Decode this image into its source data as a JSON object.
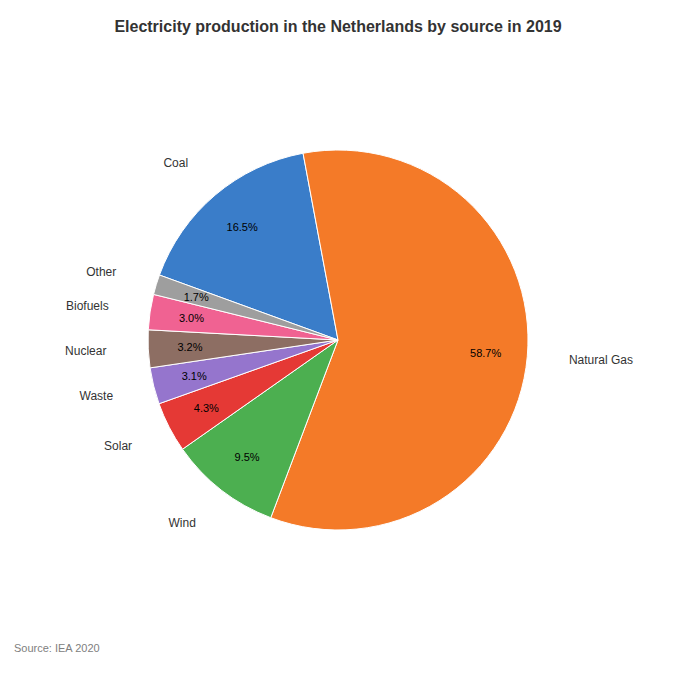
{
  "chart_data": {
    "type": "pie",
    "title": "Electricity production in the Netherlands by source in 2019",
    "categories": [
      "Coal",
      "Natural Gas",
      "Wind",
      "Solar",
      "Waste",
      "Nuclear",
      "Biofuels",
      "Other"
    ],
    "values": [
      16.5,
      58.7,
      9.5,
      4.3,
      3.1,
      3.2,
      3.0,
      1.7
    ],
    "value_labels": [
      "16.5%",
      "58.7%",
      "9.5%",
      "4.3%",
      "3.1%",
      "3.2%",
      "3.0%",
      "1.7%"
    ],
    "colors": [
      "#3a7dc9",
      "#f47a28",
      "#4caf50",
      "#e53935",
      "#9575cd",
      "#8d6e63",
      "#f06292",
      "#9e9e9e"
    ],
    "data_labels": true,
    "annotations": [
      "Source: IEA 2020"
    ]
  }
}
